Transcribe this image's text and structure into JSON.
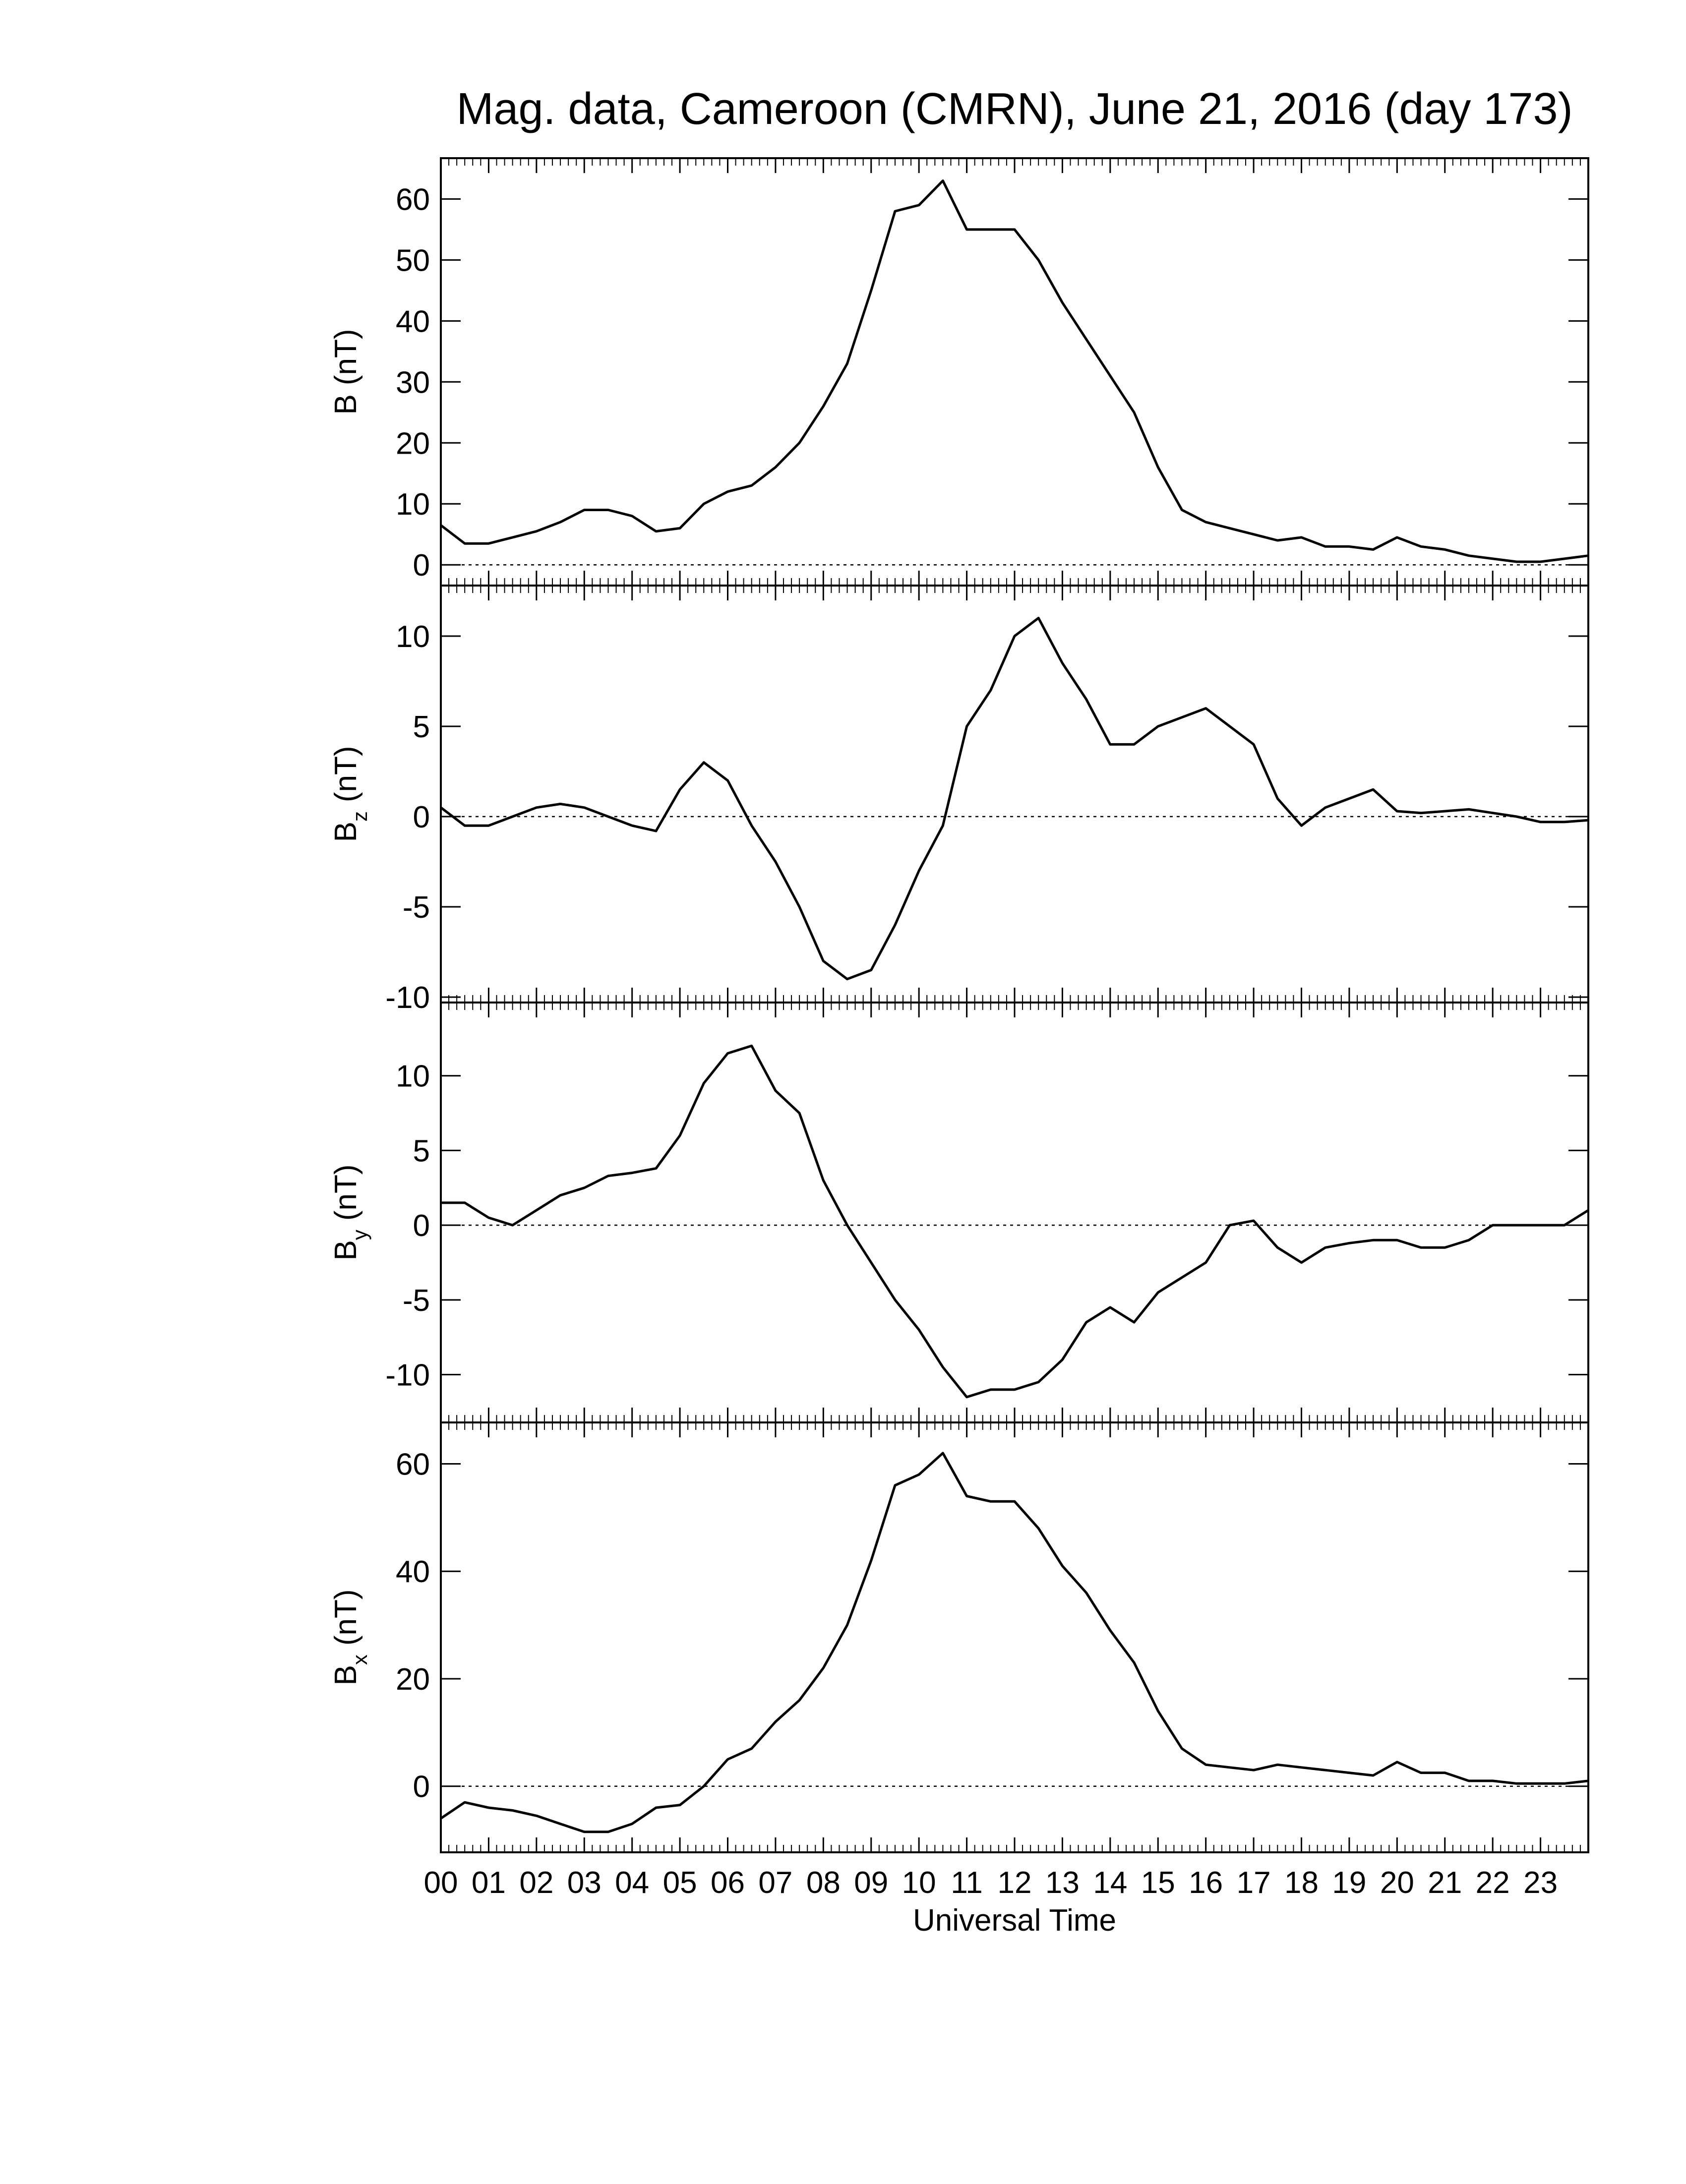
{
  "chart_data": [
    {
      "type": "line",
      "title": "Mag. data, Cameroon (CMRN), June 21, 2016 (day 173)",
      "ylabel": {
        "symbol": "B",
        "unit": "(nT)"
      },
      "x": [
        0,
        0.5,
        1,
        1.5,
        2,
        2.5,
        3,
        3.5,
        4,
        4.5,
        5,
        5.5,
        6,
        6.5,
        7,
        7.5,
        8,
        8.5,
        9,
        9.5,
        10,
        10.5,
        11,
        11.5,
        12,
        12.5,
        13,
        13.5,
        14,
        14.5,
        15,
        15.5,
        16,
        16.5,
        17,
        17.5,
        18,
        18.5,
        19,
        19.5,
        20,
        20.5,
        21,
        21.5,
        22,
        22.5,
        23,
        23.5,
        24
      ],
      "values": [
        6.5,
        3.5,
        3.5,
        4.5,
        5.5,
        7,
        9,
        9,
        8,
        5.5,
        6,
        10,
        12,
        13,
        16,
        20,
        26,
        33,
        45,
        58,
        59,
        63,
        55,
        55,
        55,
        50,
        43,
        37,
        31,
        25,
        16,
        9,
        7,
        6,
        5,
        4,
        4.5,
        3,
        3,
        2.5,
        4.5,
        3,
        2.5,
        1.5,
        1,
        0.5,
        0.5,
        1,
        1.5
      ],
      "color": "#000000",
      "xlim": [
        0,
        24
      ],
      "ylim": [
        -3.4,
        66.7
      ],
      "yticks": [
        0,
        10,
        20,
        30,
        40,
        50,
        60
      ],
      "zero_line": true
    },
    {
      "type": "line",
      "ylabel": {
        "symbol": "B",
        "subscript": "z",
        "unit": "(nT)"
      },
      "x": [
        0,
        0.5,
        1,
        1.5,
        2,
        2.5,
        3,
        3.5,
        4,
        4.5,
        5,
        5.5,
        6,
        6.5,
        7,
        7.5,
        8,
        8.5,
        9,
        9.5,
        10,
        10.5,
        11,
        11.5,
        12,
        12.5,
        13,
        13.5,
        14,
        14.5,
        15,
        15.5,
        16,
        16.5,
        17,
        17.5,
        18,
        18.5,
        19,
        19.5,
        20,
        20.5,
        21,
        21.5,
        22,
        22.5,
        23,
        23.5,
        24
      ],
      "values": [
        0.5,
        -0.5,
        -0.5,
        0,
        0.5,
        0.7,
        0.5,
        0,
        -0.5,
        -0.8,
        1.5,
        3,
        2,
        -0.5,
        -2.5,
        -5,
        -8,
        -9,
        -8.5,
        -6,
        -3,
        -0.5,
        5,
        7,
        10,
        11,
        8.5,
        6.5,
        4,
        4,
        5,
        5.5,
        6,
        5,
        4,
        1,
        -0.5,
        0.5,
        1,
        1.5,
        0.3,
        0.2,
        0.3,
        0.4,
        0.2,
        0,
        -0.3,
        -0.3,
        -0.2
      ],
      "color": "#000000",
      "xlim": [
        0,
        24
      ],
      "ylim": [
        -10.3,
        12.8
      ],
      "yticks": [
        -10,
        -5,
        0,
        5,
        10
      ],
      "zero_line": true
    },
    {
      "type": "line",
      "ylabel": {
        "symbol": "B",
        "subscript": "y",
        "unit": "(nT)"
      },
      "x": [
        0,
        0.5,
        1,
        1.5,
        2,
        2.5,
        3,
        3.5,
        4,
        4.5,
        5,
        5.5,
        6,
        6.5,
        7,
        7.5,
        8,
        8.5,
        9,
        9.5,
        10,
        10.5,
        11,
        11.5,
        12,
        12.5,
        13,
        13.5,
        14,
        14.5,
        15,
        15.5,
        16,
        16.5,
        17,
        17.5,
        18,
        18.5,
        19,
        19.5,
        20,
        20.5,
        21,
        21.5,
        22,
        22.5,
        23,
        23.5,
        24
      ],
      "values": [
        1.5,
        1.5,
        0.5,
        0,
        1,
        2,
        2.5,
        3.3,
        3.5,
        3.8,
        6,
        9.5,
        11.5,
        12,
        9,
        7.5,
        3,
        0,
        -2.5,
        -5,
        -7,
        -9.5,
        -11.5,
        -11,
        -11,
        -10.5,
        -9,
        -6.5,
        -5.5,
        -6.5,
        -4.5,
        -3.5,
        -2.5,
        0,
        0.3,
        -1.5,
        -2.5,
        -1.5,
        -1.2,
        -1,
        -1,
        -1.5,
        -1.5,
        -1,
        0,
        0,
        0,
        0,
        1
      ],
      "color": "#000000",
      "xlim": [
        0,
        24
      ],
      "ylim": [
        -13.2,
        14.9
      ],
      "yticks": [
        -10,
        -5,
        0,
        5,
        10
      ],
      "zero_line": true
    },
    {
      "type": "line",
      "ylabel": {
        "symbol": "B",
        "subscript": "x",
        "unit": "(nT)"
      },
      "xlabel": "Universal Time",
      "x": [
        0,
        0.5,
        1,
        1.5,
        2,
        2.5,
        3,
        3.5,
        4,
        4.5,
        5,
        5.5,
        6,
        6.5,
        7,
        7.5,
        8,
        8.5,
        9,
        9.5,
        10,
        10.5,
        11,
        11.5,
        12,
        12.5,
        13,
        13.5,
        14,
        14.5,
        15,
        15.5,
        16,
        16.5,
        17,
        17.5,
        18,
        18.5,
        19,
        19.5,
        20,
        20.5,
        21,
        21.5,
        22,
        22.5,
        23,
        23.5,
        24
      ],
      "values": [
        -6,
        -3,
        -4,
        -4.5,
        -5.5,
        -7,
        -8.5,
        -8.5,
        -7,
        -4,
        -3.5,
        0,
        5,
        7,
        12,
        16,
        22,
        30,
        42,
        56,
        58,
        62,
        54,
        53,
        53,
        48,
        41,
        36,
        29,
        23,
        14,
        7,
        4,
        3.5,
        3,
        4,
        3.5,
        3,
        2.5,
        2,
        4.5,
        2.5,
        2.5,
        1,
        1,
        0.5,
        0.5,
        0.5,
        1
      ],
      "color": "#000000",
      "xlim": [
        0,
        24
      ],
      "ylim": [
        -12.3,
        67.7
      ],
      "yticks": [
        0,
        20,
        40,
        60
      ],
      "zero_line": true,
      "xticks": [
        {
          "value": 0,
          "label": "00"
        },
        {
          "value": 1,
          "label": "01"
        },
        {
          "value": 2,
          "label": "02"
        },
        {
          "value": 3,
          "label": "03"
        },
        {
          "value": 4,
          "label": "04"
        },
        {
          "value": 5,
          "label": "05"
        },
        {
          "value": 6,
          "label": "06"
        },
        {
          "value": 7,
          "label": "07"
        },
        {
          "value": 8,
          "label": "08"
        },
        {
          "value": 9,
          "label": "09"
        },
        {
          "value": 10,
          "label": "10"
        },
        {
          "value": 11,
          "label": "11"
        },
        {
          "value": 12,
          "label": "12"
        },
        {
          "value": 13,
          "label": "13"
        },
        {
          "value": 14,
          "label": "14"
        },
        {
          "value": 15,
          "label": "15"
        },
        {
          "value": 16,
          "label": "16"
        },
        {
          "value": 17,
          "label": "17"
        },
        {
          "value": 18,
          "label": "18"
        },
        {
          "value": 19,
          "label": "19"
        },
        {
          "value": 20,
          "label": "20"
        },
        {
          "value": 21,
          "label": "21"
        },
        {
          "value": 22,
          "label": "22"
        },
        {
          "value": 23,
          "label": "23"
        }
      ]
    }
  ]
}
